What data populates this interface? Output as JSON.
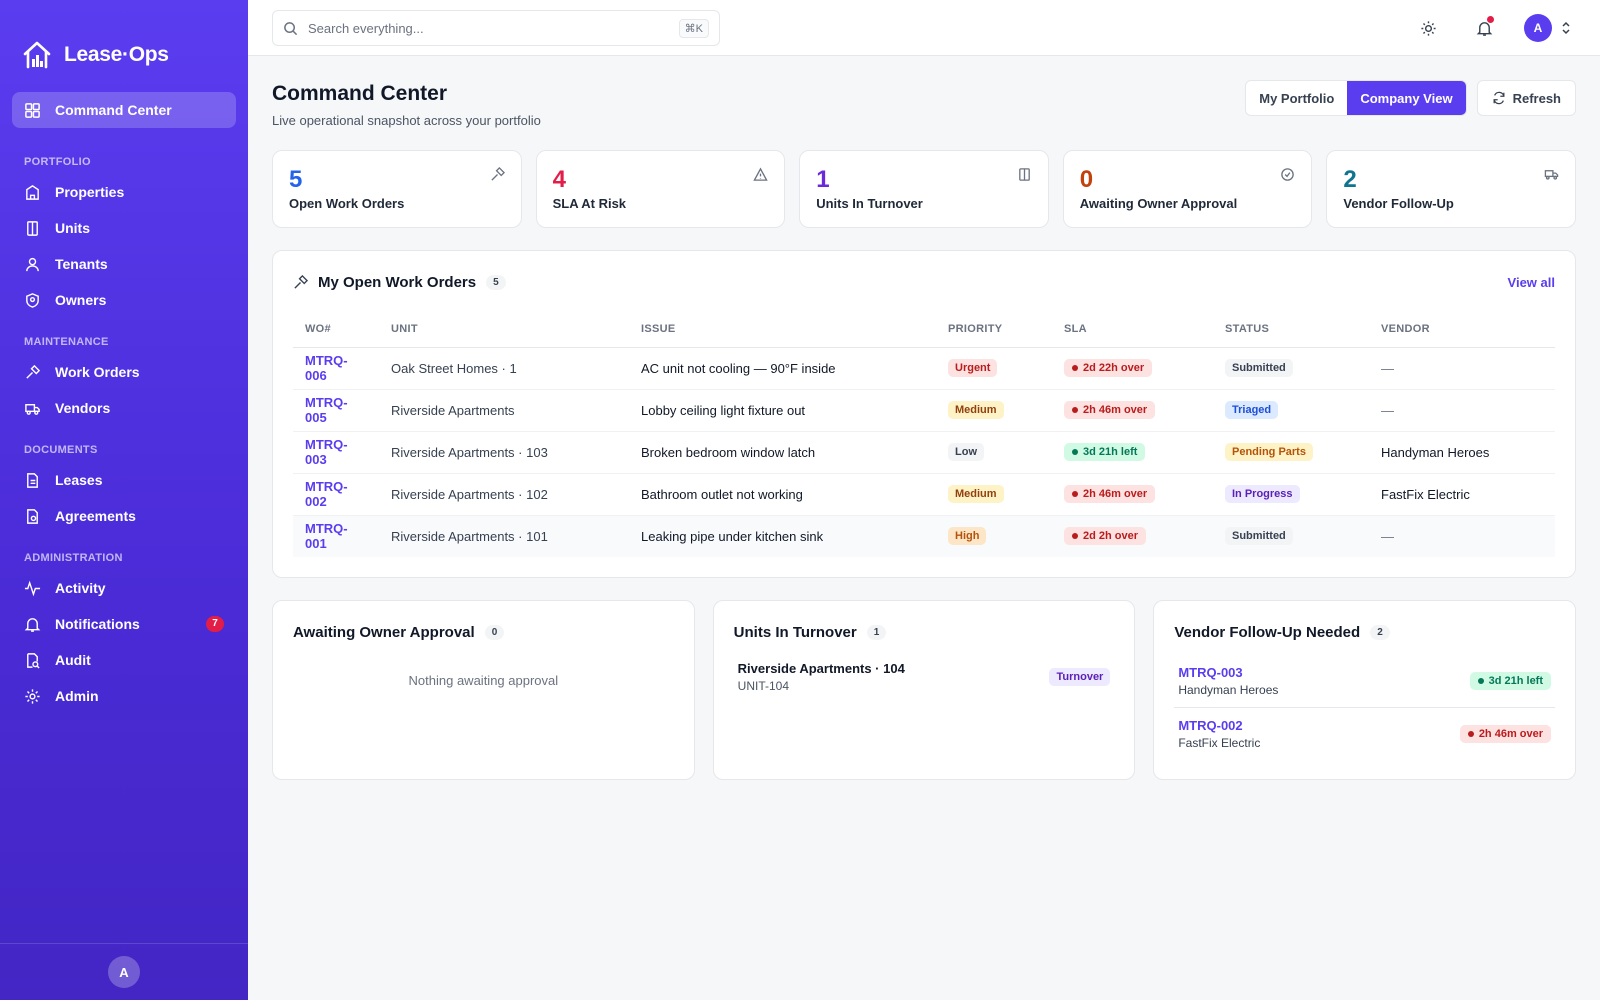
{
  "brand": {
    "name": "Lease·Ops"
  },
  "sidebar": {
    "active": {
      "label": "Command Center"
    },
    "sections": [
      {
        "title": "PORTFOLIO",
        "items": [
          {
            "label": "Properties",
            "icon": "building-icon"
          },
          {
            "label": "Units",
            "icon": "door-icon"
          },
          {
            "label": "Tenants",
            "icon": "user-icon"
          },
          {
            "label": "Owners",
            "icon": "shield-icon"
          }
        ]
      },
      {
        "title": "MAINTENANCE",
        "items": [
          {
            "label": "Work Orders",
            "icon": "hammer-icon"
          },
          {
            "label": "Vendors",
            "icon": "truck-icon"
          }
        ]
      },
      {
        "title": "DOCUMENTS",
        "items": [
          {
            "label": "Leases",
            "icon": "file-icon"
          },
          {
            "label": "Agreements",
            "icon": "file-signature-icon"
          }
        ]
      },
      {
        "title": "ADMINISTRATION",
        "items": [
          {
            "label": "Activity",
            "icon": "activity-icon"
          },
          {
            "label": "Notifications",
            "icon": "bell-icon",
            "badge": "7"
          },
          {
            "label": "Audit",
            "icon": "audit-icon"
          },
          {
            "label": "Admin",
            "icon": "gear-icon"
          }
        ]
      }
    ],
    "footer_avatar": "A"
  },
  "topbar": {
    "search_placeholder": "Search everything...",
    "search_shortcut": "⌘K",
    "user_initial": "A"
  },
  "page": {
    "title": "Command Center",
    "subtitle": "Live operational snapshot across your portfolio",
    "view_toggle": [
      "My Portfolio",
      "Company View"
    ],
    "active_view": "Company View",
    "refresh_label": "Refresh"
  },
  "stats": [
    {
      "value": "5",
      "label": "Open Work Orders",
      "color": "#2563eb",
      "icon": "hammer-icon"
    },
    {
      "value": "4",
      "label": "SLA At Risk",
      "color": "#e11d48",
      "icon": "alert-triangle-icon"
    },
    {
      "value": "1",
      "label": "Units In Turnover",
      "color": "#6d28d9",
      "icon": "door-icon"
    },
    {
      "value": "0",
      "label": "Awaiting Owner Approval",
      "color": "#c2410c",
      "icon": "check-circle-icon"
    },
    {
      "value": "2",
      "label": "Vendor Follow-Up",
      "color": "#0e7490",
      "icon": "truck-icon"
    }
  ],
  "work_orders": {
    "title": "My Open Work Orders",
    "count": "5",
    "view_all": "View all",
    "columns": [
      "WO#",
      "UNIT",
      "ISSUE",
      "PRIORITY",
      "SLA",
      "STATUS",
      "VENDOR"
    ],
    "rows": [
      {
        "wo": "MTRQ-006",
        "unit": "Oak Street Homes · 1",
        "issue": "AC unit not cooling — 90°F inside",
        "priority": "Urgent",
        "priority_class": "p-urgent",
        "sla": "2d 22h over",
        "sla_class": "sla-over",
        "status": "Submitted",
        "status_class": "st-submitted",
        "vendor": "—"
      },
      {
        "wo": "MTRQ-005",
        "unit": "Riverside Apartments",
        "issue": "Lobby ceiling light fixture out",
        "priority": "Medium",
        "priority_class": "p-medium",
        "sla": "2h 46m over",
        "sla_class": "sla-over",
        "status": "Triaged",
        "status_class": "st-triaged",
        "vendor": "—"
      },
      {
        "wo": "MTRQ-003",
        "unit": "Riverside Apartments · 103",
        "issue": "Broken bedroom window latch",
        "priority": "Low",
        "priority_class": "p-low",
        "sla": "3d 21h left",
        "sla_class": "sla-left",
        "status": "Pending Parts",
        "status_class": "st-parts",
        "vendor": "Handyman Heroes"
      },
      {
        "wo": "MTRQ-002",
        "unit": "Riverside Apartments · 102",
        "issue": "Bathroom outlet not working",
        "priority": "Medium",
        "priority_class": "p-medium",
        "sla": "2h 46m over",
        "sla_class": "sla-over",
        "status": "In Progress",
        "status_class": "st-progress",
        "vendor": "FastFix Electric"
      },
      {
        "wo": "MTRQ-001",
        "unit": "Riverside Apartments · 101",
        "issue": "Leaking pipe under kitchen sink",
        "priority": "High",
        "priority_class": "p-high",
        "sla": "2d 2h over",
        "sla_class": "sla-over",
        "status": "Submitted",
        "status_class": "st-submitted",
        "vendor": "—"
      }
    ]
  },
  "owner_approval": {
    "title": "Awaiting Owner Approval",
    "count": "0",
    "empty": "Nothing awaiting approval"
  },
  "turnover": {
    "title": "Units In Turnover",
    "count": "1",
    "items": [
      {
        "name": "Riverside Apartments · 104",
        "code": "UNIT-104",
        "tag": "Turnover"
      }
    ]
  },
  "vendor_followup": {
    "title": "Vendor Follow-Up Needed",
    "count": "2",
    "items": [
      {
        "wo": "MTRQ-003",
        "vendor": "Handyman Heroes",
        "sla": "3d 21h left",
        "sla_class": "sla-left"
      },
      {
        "wo": "MTRQ-002",
        "vendor": "FastFix Electric",
        "sla": "2h 46m over",
        "sla_class": "sla-over"
      }
    ]
  }
}
